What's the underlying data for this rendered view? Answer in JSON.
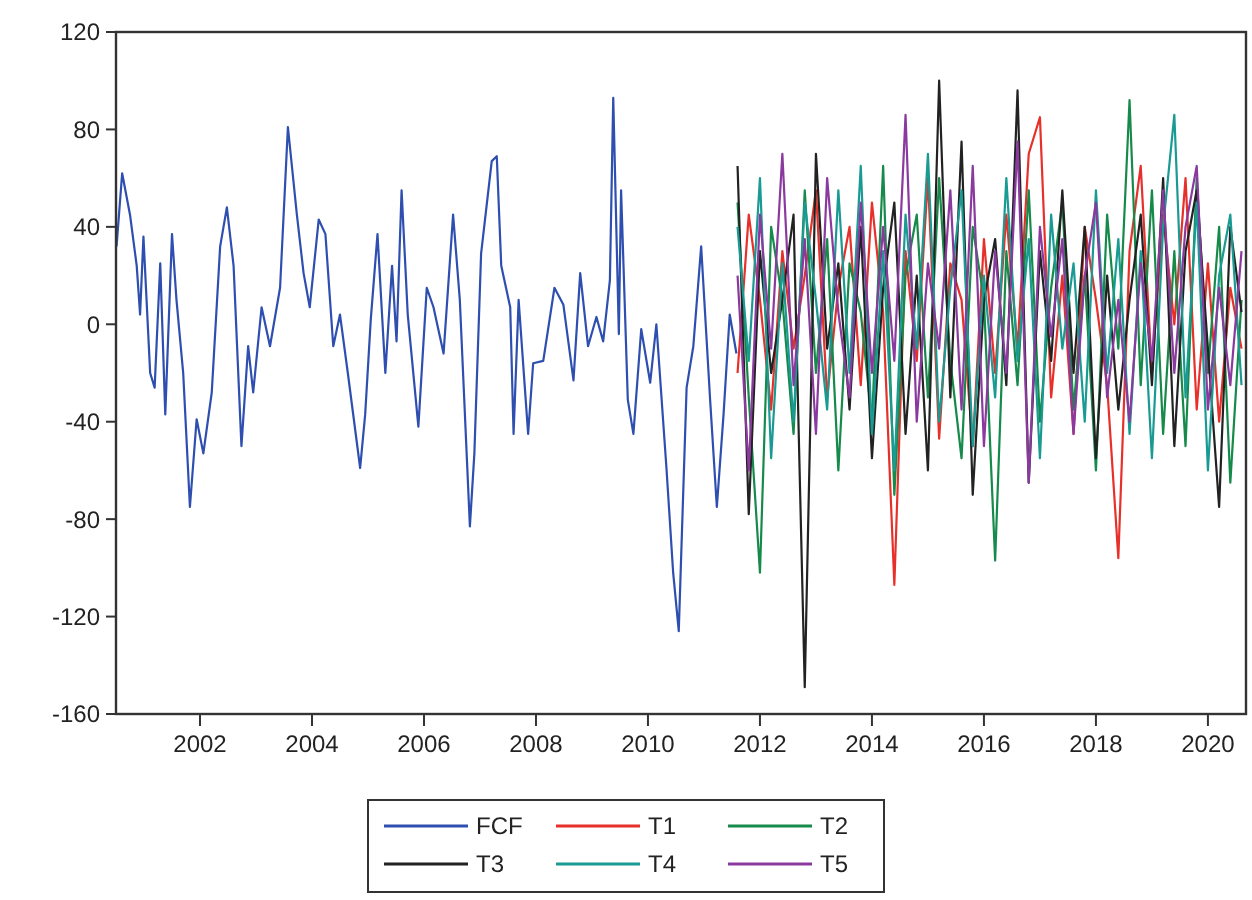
{
  "chart_data": {
    "type": "line",
    "legend": "bottom",
    "grid": false,
    "xlim": [
      2000.5,
      2020.68
    ],
    "xticks": [
      2002,
      2004,
      2006,
      2008,
      2010,
      2012,
      2014,
      2016,
      2018,
      2020
    ],
    "ylim": [
      -160,
      120
    ],
    "yticks": [
      -160,
      -120,
      -80,
      -40,
      0,
      40,
      80,
      120
    ],
    "x": [
      2011.6,
      2011.8,
      2012.0,
      2012.2,
      2012.4,
      2012.6,
      2012.8,
      2013.0,
      2013.2,
      2013.4,
      2013.6,
      2013.8,
      2014.0,
      2014.2,
      2014.4,
      2014.6,
      2014.8,
      2015.0,
      2015.2,
      2015.4,
      2015.6,
      2015.8,
      2016.0,
      2016.2,
      2016.4,
      2016.6,
      2016.8,
      2017.0,
      2017.2,
      2017.4,
      2017.6,
      2017.8,
      2018.0,
      2018.2,
      2018.4,
      2018.6,
      2018.8,
      2019.0,
      2019.2,
      2019.4,
      2019.6,
      2019.8,
      2020.0,
      2020.2,
      2020.4,
      2020.6
    ],
    "series": [
      {
        "name": "FCF",
        "color": "#2e4fb0",
        "x": [
          2000.51,
          2000.61,
          2000.75,
          2000.87,
          2000.93,
          2000.99,
          2001.11,
          2001.19,
          2001.29,
          2001.38,
          2001.5,
          2001.58,
          2001.7,
          2001.82,
          2001.94,
          2002.06,
          2002.21,
          2002.36,
          2002.48,
          2002.6,
          2002.74,
          2002.86,
          2002.95,
          2003.1,
          2003.25,
          2003.43,
          2003.57,
          2003.73,
          2003.85,
          2003.96,
          2004.12,
          2004.24,
          2004.38,
          2004.5,
          2004.64,
          2004.86,
          2004.95,
          2005.05,
          2005.17,
          2005.31,
          2005.43,
          2005.51,
          2005.6,
          2005.71,
          2005.9,
          2006.05,
          2006.17,
          2006.35,
          2006.52,
          2006.64,
          2006.82,
          2006.9,
          2007.02,
          2007.21,
          2007.3,
          2007.38,
          2007.54,
          2007.6,
          2007.69,
          2007.86,
          2007.95,
          2008.13,
          2008.33,
          2008.49,
          2008.67,
          2008.79,
          2008.93,
          2009.08,
          2009.2,
          2009.32,
          2009.38,
          2009.48,
          2009.52,
          2009.64,
          2009.74,
          2009.88,
          2010.04,
          2010.15,
          2010.33,
          2010.45,
          2010.55,
          2010.69,
          2010.81,
          2010.95,
          2011.11,
          2011.23,
          2011.35,
          2011.46,
          2011.58
        ],
        "values": [
          32,
          62,
          45,
          24,
          4,
          36,
          -20,
          -26,
          25,
          -37,
          37,
          10,
          -20,
          -75,
          -39,
          -53,
          -28,
          32,
          48,
          24,
          -50,
          -9,
          -28,
          7,
          -9,
          15,
          81,
          45,
          21,
          7,
          43,
          37,
          -9,
          4,
          -20,
          -59,
          -37,
          2,
          37,
          -20,
          24,
          -7,
          55,
          4,
          -42,
          15,
          7,
          -12,
          45,
          10,
          -83,
          -53,
          29,
          67,
          69,
          24,
          7,
          -45,
          10,
          -45,
          -16,
          -15,
          15,
          8,
          -23,
          21,
          -9,
          3,
          -7,
          18,
          93,
          -4,
          55,
          -31,
          -45,
          -2,
          -24,
          0,
          -59,
          -102,
          -126,
          -26,
          -9,
          32,
          -31,
          -75,
          -37,
          4,
          -12
        ]
      },
      {
        "name": "T1",
        "color": "#e8302a",
        "values": [
          -20,
          45,
          10,
          -35,
          30,
          -10,
          20,
          55,
          -30,
          15,
          40,
          -25,
          50,
          5,
          -107,
          30,
          -15,
          60,
          -47,
          25,
          10,
          -50,
          35,
          -20,
          45,
          -10,
          70,
          85,
          -30,
          20,
          -45,
          40,
          10,
          -25,
          -96,
          30,
          65,
          -20,
          45,
          0,
          60,
          -35,
          25,
          -40,
          15,
          -10
        ]
      },
      {
        "name": "T2",
        "color": "#168a4a",
        "values": [
          50,
          -30,
          -102,
          40,
          10,
          -45,
          55,
          -20,
          35,
          -60,
          25,
          5,
          -40,
          65,
          -70,
          20,
          45,
          -30,
          60,
          -15,
          -55,
          40,
          10,
          -97,
          30,
          -25,
          55,
          -40,
          15,
          50,
          -35,
          20,
          -60,
          45,
          -10,
          92,
          -25,
          55,
          -45,
          30,
          -50,
          60,
          -20,
          40,
          -65,
          10
        ]
      },
      {
        "name": "T3",
        "color": "#222222",
        "values": [
          65,
          -78,
          30,
          -20,
          10,
          45,
          -149,
          70,
          -10,
          25,
          -35,
          40,
          -55,
          15,
          50,
          -45,
          20,
          -60,
          100,
          -30,
          75,
          -70,
          10,
          35,
          -25,
          96,
          -65,
          30,
          -15,
          55,
          -20,
          40,
          -55,
          20,
          -35,
          10,
          45,
          -25,
          60,
          -50,
          30,
          55,
          -10,
          -75,
          40,
          5
        ]
      },
      {
        "name": "T4",
        "color": "#199a92",
        "values": [
          40,
          -15,
          60,
          -55,
          25,
          -40,
          50,
          10,
          -35,
          55,
          -20,
          65,
          -45,
          30,
          -60,
          45,
          -10,
          70,
          -40,
          15,
          55,
          -50,
          20,
          -30,
          60,
          -15,
          35,
          -55,
          45,
          -10,
          25,
          -40,
          55,
          -20,
          35,
          -45,
          30,
          -55,
          40,
          86,
          -30,
          50,
          -60,
          20,
          45,
          -25
        ]
      },
      {
        "name": "T5",
        "color": "#8a3a9e",
        "values": [
          20,
          -60,
          45,
          -10,
          70,
          -25,
          35,
          -45,
          60,
          5,
          -30,
          50,
          -20,
          40,
          -15,
          86,
          -40,
          25,
          -10,
          55,
          -35,
          65,
          -50,
          30,
          -20,
          75,
          -65,
          40,
          -5,
          35,
          -45,
          20,
          50,
          -30,
          10,
          -40,
          25,
          -15,
          55,
          -20,
          40,
          65,
          -35,
          15,
          -25,
          30
        ]
      }
    ]
  }
}
